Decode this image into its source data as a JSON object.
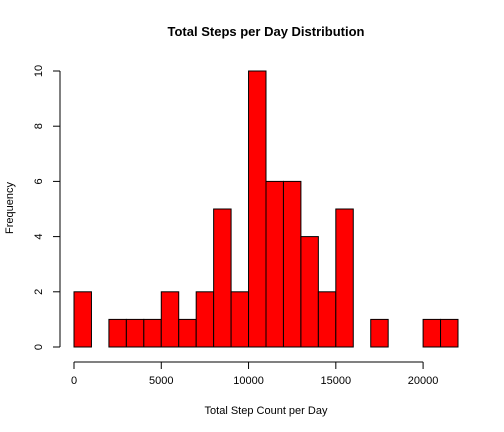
{
  "chart_data": {
    "type": "bar",
    "title": "Total Steps per Day Distribution",
    "xlabel": "Total Step Count per Day",
    "ylabel": "Frequency",
    "bin_width": 1000,
    "x_start": 0,
    "values": [
      2,
      0,
      1,
      1,
      1,
      2,
      1,
      2,
      5,
      2,
      10,
      6,
      6,
      4,
      2,
      5,
      0,
      1,
      0,
      0,
      1,
      1
    ],
    "xlim": [
      0,
      22000
    ],
    "ylim": [
      0,
      10
    ],
    "x_ticks": [
      0,
      5000,
      10000,
      15000,
      20000
    ],
    "y_ticks": [
      0,
      2,
      4,
      6,
      8,
      10
    ],
    "bar_color": "#ff0000",
    "grid": false,
    "legend": "none"
  }
}
